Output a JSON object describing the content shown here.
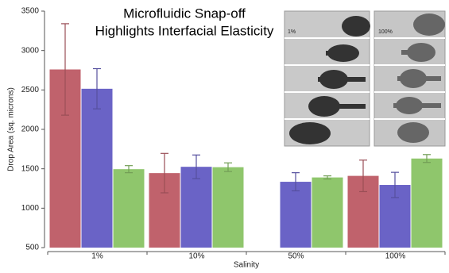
{
  "chart_data": {
    "type": "bar",
    "title": [
      "Microfluidic Snap-off",
      "Highlights Interfacial Elasticity"
    ],
    "x_label": "Salinity",
    "y_label": "Drop Area (sq. microns)",
    "categories": [
      "1%",
      "10%",
      "50%",
      "100%"
    ],
    "series": [
      {
        "color": "#c0626c",
        "values": [
          2760,
          1445,
          null,
          1410
        ],
        "errors": [
          580,
          250,
          null,
          200
        ]
      },
      {
        "color": "#6a63c6",
        "values": [
          2515,
          1525,
          1335,
          1295
        ],
        "errors": [
          255,
          150,
          115,
          160
        ]
      },
      {
        "color": "#8fc66c",
        "values": [
          1495,
          1520,
          1390,
          1630
        ],
        "errors": [
          45,
          55,
          20,
          50
        ]
      }
    ],
    "ylim": [
      500,
      3500
    ],
    "yticks": [
      500,
      1000,
      1500,
      2000,
      2500,
      3000,
      3500
    ],
    "annotations": [
      "1%",
      "100%"
    ]
  }
}
